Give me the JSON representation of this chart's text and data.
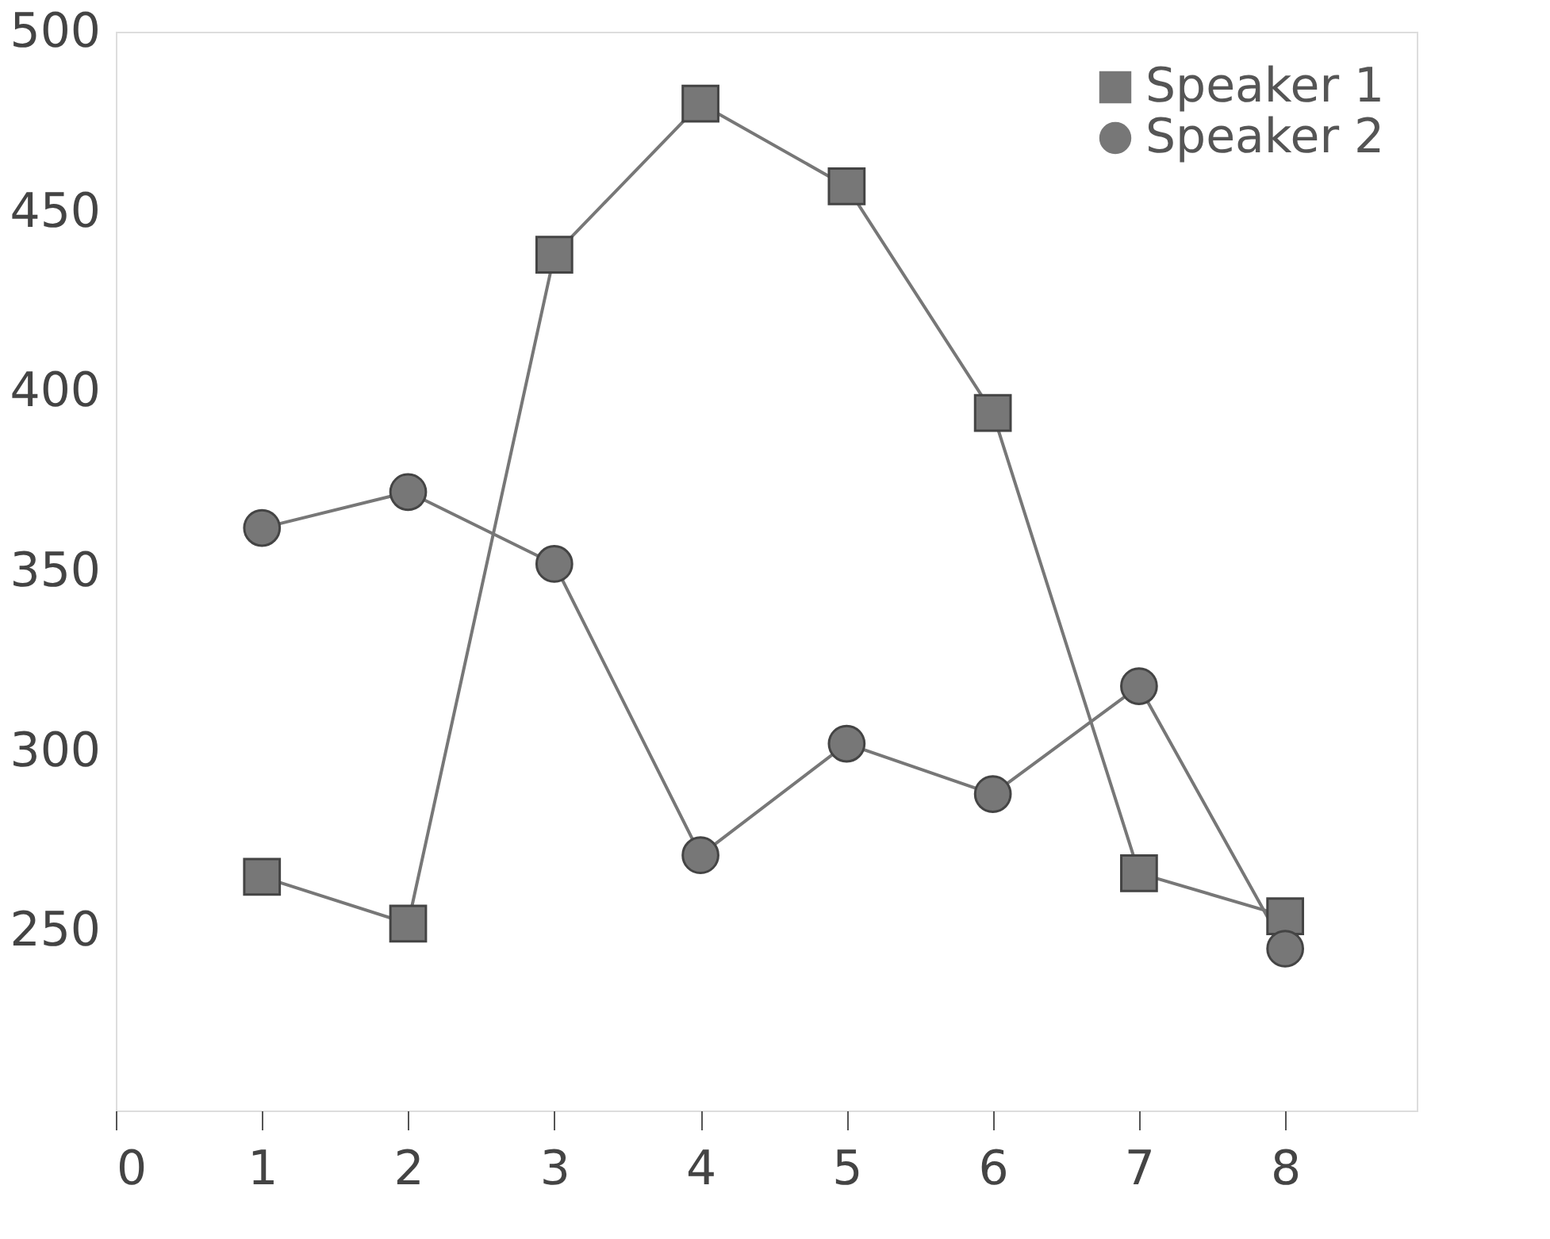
{
  "chart_data": {
    "type": "line",
    "x": [
      1,
      2,
      3,
      4,
      5,
      6,
      7,
      8
    ],
    "series": [
      {
        "name": "Speaker 1",
        "color": "#777777",
        "marker": "square",
        "values": [
          265,
          252,
          438,
          480,
          457,
          394,
          266,
          254
        ]
      },
      {
        "name": "Speaker 2",
        "color": "#777777",
        "marker": "circle",
        "values": [
          362,
          372,
          352,
          271,
          302,
          288,
          318,
          245
        ]
      }
    ],
    "xlim": [
      0,
      8.9
    ],
    "xticks": [
      0,
      1,
      2,
      3,
      4,
      5,
      6,
      7,
      8
    ],
    "ylim": [
      200,
      500
    ],
    "yticks": [
      250,
      300,
      350,
      400,
      450,
      500
    ],
    "grid": false,
    "legend": "top right",
    "line_style": "solid"
  }
}
